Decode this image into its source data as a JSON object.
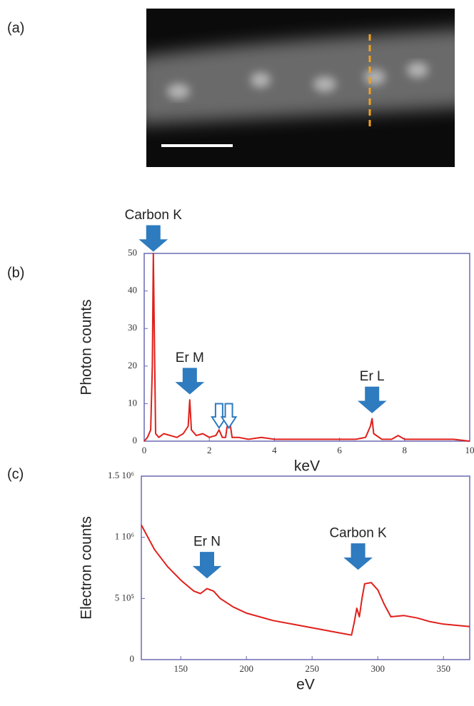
{
  "image_panel": {
    "label": "(a)"
  },
  "chart_data": [
    {
      "type": "line",
      "panel_label": "(b)",
      "x_label": "keV",
      "y_label": "Photon counts",
      "color": "#e0201b",
      "axis_color": "#6a6ab4",
      "x": [
        0,
        0.1,
        0.2,
        0.25,
        0.28,
        0.31,
        0.35,
        0.45,
        0.6,
        0.8,
        1.0,
        1.2,
        1.35,
        1.4,
        1.45,
        1.6,
        1.8,
        2.0,
        2.2,
        2.3,
        2.4,
        2.5,
        2.6,
        2.7,
        2.9,
        3.2,
        3.6,
        4.0,
        4.5,
        5.0,
        5.5,
        6.0,
        6.5,
        6.8,
        6.95,
        7.0,
        7.05,
        7.3,
        7.6,
        7.8,
        8.0,
        8.5,
        9.0,
        9.5,
        10
      ],
      "values": [
        0,
        1,
        3,
        20,
        50,
        30,
        2,
        1,
        2,
        1.5,
        1,
        2,
        4,
        11,
        3,
        1.5,
        2,
        1,
        1.5,
        3,
        1,
        1,
        7,
        1,
        1,
        0.5,
        1,
        0.5,
        0.5,
        0.5,
        0.5,
        0.5,
        0.5,
        1,
        4,
        6,
        2,
        0.5,
        0.5,
        1.5,
        0.5,
        0.5,
        0.5,
        0.5,
        0
      ],
      "xlim": [
        0,
        10
      ],
      "xticks": [
        0,
        2,
        4,
        6,
        8,
        10
      ],
      "ylim": [
        0,
        50
      ],
      "yticks": [
        0,
        10,
        20,
        30,
        40,
        50
      ],
      "annotations": [
        {
          "text": "Carbon K",
          "x": 0.28,
          "y": 50
        },
        {
          "text": "Er M",
          "x": 1.4,
          "y": 12
        },
        {
          "text": "Er L",
          "x": 7,
          "y": 7
        }
      ],
      "marker_arrows_x": [
        2.3,
        2.6
      ]
    },
    {
      "type": "line",
      "panel_label": "(c)",
      "x_label": "eV",
      "y_label": "Electron counts",
      "color": "#e0201b",
      "axis_color": "#6a6ab4",
      "x": [
        120,
        130,
        140,
        150,
        160,
        165,
        170,
        175,
        180,
        190,
        200,
        220,
        240,
        260,
        275,
        280,
        282,
        284,
        286,
        288,
        290,
        295,
        300,
        305,
        310,
        320,
        330,
        340,
        350,
        360,
        370
      ],
      "values": [
        1100000,
        900000,
        760000,
        650000,
        560000,
        540000,
        580000,
        560000,
        500000,
        430000,
        380000,
        320000,
        280000,
        240000,
        210000,
        200000,
        300000,
        420000,
        350000,
        500000,
        620000,
        630000,
        570000,
        450000,
        350000,
        360000,
        340000,
        310000,
        290000,
        280000,
        270000
      ],
      "xlim": [
        120,
        370
      ],
      "xticks": [
        150,
        200,
        250,
        300,
        350
      ],
      "ylim": [
        0,
        1500000
      ],
      "yticks": [
        0,
        {
          "value": 500000,
          "label": "5 10⁵"
        },
        {
          "value": 1000000,
          "label": "1 10⁶"
        },
        {
          "value": 1500000,
          "label": "1.5 10⁶"
        }
      ],
      "annotations": [
        {
          "text": "Er N",
          "x": 170,
          "y": 650000
        },
        {
          "text": "Carbon K",
          "x": 285,
          "y": 720000
        }
      ]
    }
  ]
}
